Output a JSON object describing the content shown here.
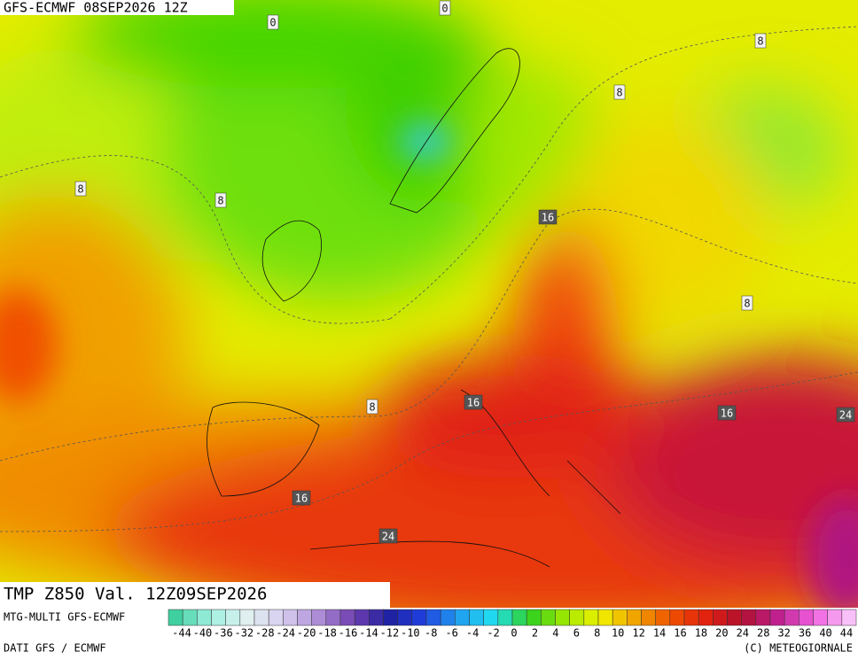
{
  "header": {
    "title": "GFS-ECMWF 08SEP2026 12Z"
  },
  "map": {
    "contour_labels": [
      0,
      0,
      8,
      8,
      8,
      8,
      16,
      8,
      8,
      16,
      16,
      24,
      16,
      24
    ]
  },
  "footer": {
    "field": "TMP Z850 Val. 12Z09SEP2026",
    "model": "MTG-MULTI GFS-ECMWF",
    "source": "DATI GFS / ECMWF",
    "copyright": "(C) METEOGIORNALE",
    "scale": [
      -44,
      -40,
      -36,
      -32,
      -28,
      -24,
      -20,
      -18,
      -16,
      -14,
      -12,
      -10,
      -8,
      -6,
      -4,
      -2,
      0,
      2,
      4,
      6,
      8,
      10,
      12,
      14,
      16,
      18,
      20,
      24,
      28,
      32,
      36,
      40,
      44
    ]
  }
}
